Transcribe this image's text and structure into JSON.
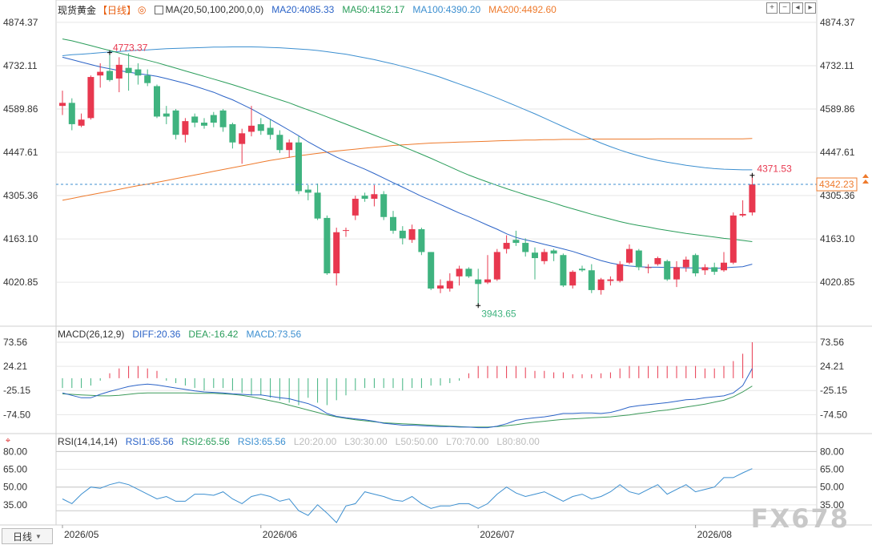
{
  "header": {
    "symbol": "现货黄金",
    "period": "【日线】",
    "ma_params": "MA(20,50,100,200,0,0)",
    "ma20": "MA20:4085.33",
    "ma50": "MA50:4152.17",
    "ma100": "MA100:4390.20",
    "ma200": "MA200:4492.60"
  },
  "macd_header": {
    "params": "MACD(26,12,9)",
    "diff": "DIFF:20.36",
    "dea": "DEA:-16.42",
    "macd": "MACD:73.56"
  },
  "rsi_header": {
    "params": "RSI(14,14,14)",
    "rsi1": "RSI1:65.56",
    "rsi2": "RSI2:65.56",
    "rsi3": "RSI3:65.56",
    "l20": "L20:20.00",
    "l30": "L30:30.00",
    "l50": "L50:50.00",
    "l70": "L70:70.00",
    "l80": "L80:80.00"
  },
  "colors": {
    "up": "#e8384f",
    "down": "#3fb37f",
    "ma20": "#2b63c7",
    "ma50": "#2a9d5a",
    "ma100": "#3c8fd0",
    "ma200": "#ee7a2c",
    "dea": "#3c9a5a",
    "rsi": "#3c8fd0",
    "grid": "#e6e6e6",
    "label_high": "#e8384f",
    "label_low": "#3fb37f"
  },
  "price_axis": {
    "ticks": [
      "4874.37",
      "4732.11",
      "4589.86",
      "4447.61",
      "4305.36",
      "4163.10",
      "4020.85"
    ],
    "current": "4342.23",
    "high_label": "4773.37",
    "low_label": "3943.65",
    "last_high_label": "4371.53"
  },
  "macd_axis": {
    "ticks": [
      "73.56",
      "24.21",
      "-25.15",
      "-74.50"
    ]
  },
  "rsi_axis": {
    "ticks": [
      "80.00",
      "65.00",
      "50.00",
      "35.00"
    ]
  },
  "date_axis": {
    "labels": [
      "2026/05",
      "2026/06",
      "2026/07",
      "2026/08"
    ]
  },
  "footer": {
    "period_button": "日线",
    "watermark": "FX678"
  },
  "chart_data": {
    "type": "candlestick",
    "price_range": [
      3900,
      4890
    ],
    "candles": [
      {
        "o": 4600,
        "h": 4650,
        "l": 4570,
        "c": 4610
      },
      {
        "o": 4610,
        "h": 4625,
        "l": 4520,
        "c": 4540
      },
      {
        "o": 4535,
        "h": 4575,
        "l": 4530,
        "c": 4555
      },
      {
        "o": 4560,
        "h": 4700,
        "l": 4555,
        "c": 4695
      },
      {
        "o": 4700,
        "h": 4740,
        "l": 4660,
        "c": 4712
      },
      {
        "o": 4715,
        "h": 4775,
        "l": 4680,
        "c": 4685
      },
      {
        "o": 4690,
        "h": 4760,
        "l": 4645,
        "c": 4735
      },
      {
        "o": 4725,
        "h": 4773,
        "l": 4650,
        "c": 4708
      },
      {
        "o": 4720,
        "h": 4740,
        "l": 4670,
        "c": 4700
      },
      {
        "o": 4700,
        "h": 4720,
        "l": 4665,
        "c": 4675
      },
      {
        "o": 4665,
        "h": 4670,
        "l": 4560,
        "c": 4565
      },
      {
        "o": 4575,
        "h": 4600,
        "l": 4540,
        "c": 4565
      },
      {
        "o": 4585,
        "h": 4590,
        "l": 4490,
        "c": 4505
      },
      {
        "o": 4505,
        "h": 4560,
        "l": 4480,
        "c": 4550
      },
      {
        "o": 4565,
        "h": 4575,
        "l": 4530,
        "c": 4545
      },
      {
        "o": 4545,
        "h": 4560,
        "l": 4525,
        "c": 4535
      },
      {
        "o": 4570,
        "h": 4580,
        "l": 4530,
        "c": 4545
      },
      {
        "o": 4585,
        "h": 4590,
        "l": 4515,
        "c": 4530
      },
      {
        "o": 4540,
        "h": 4545,
        "l": 4460,
        "c": 4480
      },
      {
        "o": 4475,
        "h": 4525,
        "l": 4410,
        "c": 4510
      },
      {
        "o": 4515,
        "h": 4600,
        "l": 4500,
        "c": 4535
      },
      {
        "o": 4540,
        "h": 4560,
        "l": 4505,
        "c": 4518
      },
      {
        "o": 4528,
        "h": 4555,
        "l": 4490,
        "c": 4505
      },
      {
        "o": 4505,
        "h": 4520,
        "l": 4445,
        "c": 4455
      },
      {
        "o": 4455,
        "h": 4490,
        "l": 4430,
        "c": 4480
      },
      {
        "o": 4480,
        "h": 4500,
        "l": 4310,
        "c": 4320
      },
      {
        "o": 4325,
        "h": 4340,
        "l": 4290,
        "c": 4315
      },
      {
        "o": 4315,
        "h": 4345,
        "l": 4225,
        "c": 4230
      },
      {
        "o": 4232,
        "h": 4240,
        "l": 4045,
        "c": 4050
      },
      {
        "o": 4050,
        "h": 4200,
        "l": 4010,
        "c": 4185
      },
      {
        "o": 4190,
        "h": 4200,
        "l": 4170,
        "c": 4192
      },
      {
        "o": 4240,
        "h": 4305,
        "l": 4225,
        "c": 4295
      },
      {
        "o": 4305,
        "h": 4315,
        "l": 4285,
        "c": 4295
      },
      {
        "o": 4295,
        "h": 4340,
        "l": 4270,
        "c": 4310
      },
      {
        "o": 4310,
        "h": 4320,
        "l": 4225,
        "c": 4235
      },
      {
        "o": 4235,
        "h": 4255,
        "l": 4180,
        "c": 4190
      },
      {
        "o": 4190,
        "h": 4205,
        "l": 4145,
        "c": 4165
      },
      {
        "o": 4160,
        "h": 4210,
        "l": 4150,
        "c": 4195
      },
      {
        "o": 4195,
        "h": 4200,
        "l": 4110,
        "c": 4120
      },
      {
        "o": 4120,
        "h": 4120,
        "l": 3995,
        "c": 4000
      },
      {
        "o": 4000,
        "h": 4030,
        "l": 3985,
        "c": 4010
      },
      {
        "o": 4000,
        "h": 4050,
        "l": 3990,
        "c": 4025
      },
      {
        "o": 4040,
        "h": 4075,
        "l": 4010,
        "c": 4065
      },
      {
        "o": 4065,
        "h": 4070,
        "l": 4035,
        "c": 4040
      },
      {
        "o": 4030,
        "h": 4065,
        "l": 3944,
        "c": 4015
      },
      {
        "o": 4020,
        "h": 4110,
        "l": 4015,
        "c": 4030
      },
      {
        "o": 4030,
        "h": 4130,
        "l": 4025,
        "c": 4120
      },
      {
        "o": 4130,
        "h": 4175,
        "l": 4115,
        "c": 4150
      },
      {
        "o": 4160,
        "h": 4190,
        "l": 4140,
        "c": 4150
      },
      {
        "o": 4150,
        "h": 4165,
        "l": 4105,
        "c": 4120
      },
      {
        "o": 4118,
        "h": 4135,
        "l": 4030,
        "c": 4100
      },
      {
        "o": 4090,
        "h": 4130,
        "l": 4080,
        "c": 4120
      },
      {
        "o": 4125,
        "h": 4130,
        "l": 4090,
        "c": 4115
      },
      {
        "o": 4110,
        "h": 4115,
        "l": 4005,
        "c": 4010
      },
      {
        "o": 4010,
        "h": 4060,
        "l": 4000,
        "c": 4055
      },
      {
        "o": 4065,
        "h": 4075,
        "l": 4055,
        "c": 4060
      },
      {
        "o": 4060,
        "h": 4080,
        "l": 3985,
        "c": 3995
      },
      {
        "o": 3995,
        "h": 4035,
        "l": 3980,
        "c": 4030
      },
      {
        "o": 4025,
        "h": 4040,
        "l": 4010,
        "c": 4030
      },
      {
        "o": 4025,
        "h": 4090,
        "l": 4020,
        "c": 4080
      },
      {
        "o": 4085,
        "h": 4145,
        "l": 4080,
        "c": 4130
      },
      {
        "o": 4125,
        "h": 4130,
        "l": 4060,
        "c": 4070
      },
      {
        "o": 4070,
        "h": 4080,
        "l": 4050,
        "c": 4070
      },
      {
        "o": 4080,
        "h": 4105,
        "l": 4075,
        "c": 4100
      },
      {
        "o": 4090,
        "h": 4095,
        "l": 4025,
        "c": 4030
      },
      {
        "o": 4030,
        "h": 4090,
        "l": 4005,
        "c": 4070
      },
      {
        "o": 4070,
        "h": 4105,
        "l": 4055,
        "c": 4095
      },
      {
        "o": 4110,
        "h": 4115,
        "l": 4040,
        "c": 4050
      },
      {
        "o": 4060,
        "h": 4080,
        "l": 4045,
        "c": 4070
      },
      {
        "o": 4070,
        "h": 4085,
        "l": 4045,
        "c": 4055
      },
      {
        "o": 4060,
        "h": 4120,
        "l": 4055,
        "c": 4085
      },
      {
        "o": 4085,
        "h": 4250,
        "l": 4080,
        "c": 4240
      },
      {
        "o": 4240,
        "h": 4290,
        "l": 4235,
        "c": 4245
      },
      {
        "o": 4250,
        "h": 4372,
        "l": 4240,
        "c": 4342
      }
    ],
    "ma20": [
      4760,
      4752,
      4744,
      4736,
      4728,
      4722,
      4716,
      4711,
      4706,
      4702,
      4697,
      4690,
      4682,
      4674,
      4665,
      4655,
      4645,
      4632,
      4620,
      4605,
      4590,
      4573,
      4556,
      4538,
      4520,
      4502,
      4482,
      4465,
      4448,
      4432,
      4418,
      4405,
      4392,
      4378,
      4363,
      4348,
      4333,
      4318,
      4303,
      4290,
      4276,
      4262,
      4248,
      4236,
      4222,
      4208,
      4195,
      4180,
      4168,
      4160,
      4153,
      4145,
      4138,
      4130,
      4122,
      4112,
      4102,
      4092,
      4084,
      4078,
      4074,
      4072,
      4070,
      4070,
      4069,
      4069,
      4068,
      4068,
      4067,
      4066,
      4068,
      4070,
      4072,
      4080
    ],
    "ma50": [
      4820,
      4814,
      4806,
      4798,
      4790,
      4782,
      4774,
      4766,
      4758,
      4750,
      4742,
      4733,
      4724,
      4715,
      4706,
      4697,
      4688,
      4679,
      4670,
      4660,
      4650,
      4640,
      4630,
      4620,
      4610,
      4598,
      4587,
      4576,
      4564,
      4552,
      4540,
      4528,
      4516,
      4504,
      4492,
      4480,
      4467,
      4454,
      4441,
      4428,
      4414,
      4400,
      4386,
      4373,
      4361,
      4350,
      4339,
      4328,
      4318,
      4308,
      4299,
      4290,
      4281,
      4271,
      4262,
      4253,
      4244,
      4236,
      4228,
      4220,
      4213,
      4207,
      4202,
      4196,
      4191,
      4186,
      4181,
      4177,
      4173,
      4169,
      4165,
      4162,
      4158,
      4154
    ],
    "ma100": [
      4765,
      4768,
      4770,
      4772,
      4775,
      4777,
      4779,
      4781,
      4783,
      4784,
      4786,
      4788,
      4789,
      4790,
      4791,
      4792,
      4793,
      4793,
      4794,
      4794,
      4794,
      4793,
      4792,
      4791,
      4789,
      4787,
      4785,
      4782,
      4778,
      4774,
      4770,
      4764,
      4758,
      4752,
      4745,
      4738,
      4730,
      4722,
      4713,
      4704,
      4694,
      4683,
      4672,
      4661,
      4650,
      4638,
      4626,
      4613,
      4600,
      4587,
      4574,
      4560,
      4546,
      4532,
      4518,
      4504,
      4491,
      4478,
      4466,
      4455,
      4445,
      4436,
      4428,
      4421,
      4415,
      4410,
      4405,
      4401,
      4397,
      4394,
      4392,
      4391,
      4390,
      4390
    ],
    "ma200": [
      4290,
      4296,
      4302,
      4308,
      4314,
      4320,
      4326,
      4332,
      4338,
      4343,
      4349,
      4355,
      4361,
      4367,
      4373,
      4379,
      4385,
      4391,
      4397,
      4403,
      4409,
      4415,
      4421,
      4426,
      4431,
      4436,
      4440,
      4444,
      4448,
      4452,
      4455,
      4458,
      4461,
      4464,
      4467,
      4470,
      4472,
      4474,
      4476,
      4478,
      4479,
      4480,
      4481,
      4482,
      4483,
      4484,
      4485,
      4486,
      4487,
      4488,
      4488,
      4489,
      4489,
      4490,
      4490,
      4490,
      4491,
      4491,
      4491,
      4491,
      4491,
      4491,
      4491,
      4492,
      4492,
      4492,
      4492,
      4492,
      4492,
      4492,
      4492,
      4492,
      4492,
      4493
    ],
    "macd": {
      "range": [
        -105,
        85
      ],
      "diff": [
        -30,
        -35,
        -40,
        -40,
        -33,
        -27,
        -22,
        -17,
        -14,
        -12,
        -14,
        -17,
        -20,
        -23,
        -26,
        -28,
        -29,
        -30,
        -32,
        -33,
        -34,
        -34,
        -37,
        -40,
        -42,
        -47,
        -52,
        -60,
        -72,
        -78,
        -81,
        -83,
        -85,
        -88,
        -92,
        -94,
        -96,
        -96,
        -97,
        -98,
        -99,
        -99,
        -100,
        -100,
        -101,
        -101,
        -98,
        -93,
        -86,
        -83,
        -81,
        -79,
        -76,
        -72,
        -72,
        -71,
        -71,
        -72,
        -70,
        -65,
        -59,
        -56,
        -54,
        -52,
        -50,
        -47,
        -44,
        -43,
        -40,
        -38,
        -36,
        -30,
        -15,
        20
      ],
      "dea": [
        -32,
        -33,
        -34,
        -35,
        -36,
        -36,
        -35,
        -33,
        -31,
        -30,
        -30,
        -30,
        -30,
        -30,
        -31,
        -31,
        -31,
        -32,
        -33,
        -35,
        -38,
        -42,
        -46,
        -50,
        -55,
        -60,
        -65,
        -70,
        -75,
        -79,
        -82,
        -85,
        -87,
        -89,
        -91,
        -92,
        -93,
        -94,
        -95,
        -96,
        -97,
        -98,
        -99,
        -100,
        -100,
        -100,
        -99,
        -97,
        -95,
        -92,
        -90,
        -88,
        -86,
        -84,
        -83,
        -82,
        -81,
        -80,
        -79,
        -77,
        -75,
        -72,
        -70,
        -67,
        -65,
        -62,
        -59,
        -56,
        -53,
        -49,
        -45,
        -38,
        -28,
        -16
      ],
      "hist": [
        -20,
        -20,
        -20,
        -15,
        -5,
        10,
        20,
        25,
        25,
        20,
        15,
        -5,
        -10,
        -15,
        -20,
        -25,
        -20,
        -20,
        -25,
        -30,
        -35,
        -35,
        -40,
        -45,
        -50,
        -55,
        -40,
        -50,
        -55,
        -45,
        -35,
        -25,
        -20,
        -20,
        -20,
        -20,
        -25,
        -20,
        -20,
        -15,
        -15,
        -10,
        -5,
        10,
        25,
        25,
        25,
        25,
        25,
        22,
        15,
        15,
        12,
        12,
        8,
        8,
        8,
        10,
        12,
        20,
        25,
        25,
        25,
        25,
        25,
        25,
        25,
        25,
        20,
        20,
        25,
        35,
        50,
        73.56
      ]
    },
    "rsi": {
      "range": [
        20,
        85
      ],
      "values": [
        40,
        36,
        44,
        50,
        49,
        52,
        54,
        52,
        48,
        44,
        40,
        42,
        38,
        38,
        44,
        44,
        43,
        46,
        40,
        36,
        42,
        44,
        42,
        38,
        40,
        30,
        26,
        35,
        28,
        20,
        34,
        36,
        46,
        44,
        42,
        39,
        38,
        42,
        36,
        32,
        34,
        34,
        36,
        36,
        32,
        36,
        44,
        50,
        45,
        42,
        44,
        46,
        42,
        38,
        42,
        44,
        40,
        42,
        46,
        52,
        46,
        44,
        48,
        52,
        44,
        48,
        52,
        46,
        48,
        50,
        58,
        58,
        62,
        65.56
      ]
    }
  }
}
